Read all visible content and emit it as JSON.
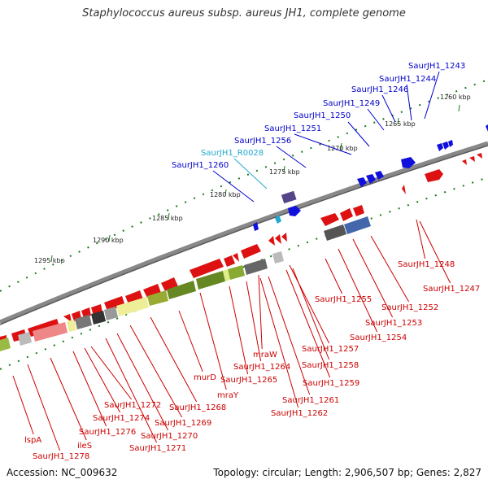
{
  "title": "Staphylococcus aureus subsp. aureus JH1, complete genome",
  "footer": {
    "accession": "Accession: NC_009632",
    "info": "Topology: circular; Length: 2,906,507 bp; Genes: 2,827"
  },
  "colors": {
    "forward_gene": "#0000cc",
    "rna_gene": "#22aacc",
    "reverse_gene": "#cc0000",
    "backbone": "#777777",
    "tick": "#1a7a1a"
  },
  "ticks": [
    {
      "label": "1260 kbp"
    },
    {
      "label": "1265 kbp"
    },
    {
      "label": "1270 kbp"
    },
    {
      "label": "1275 kbp"
    },
    {
      "label": "1280 kbp"
    },
    {
      "label": "1285 kbp"
    },
    {
      "label": "1290 kbp"
    },
    {
      "label": "1295 kbp"
    }
  ],
  "top_labels": [
    {
      "text": "SaurJH1_1243"
    },
    {
      "text": "SaurJH1_1244"
    },
    {
      "text": "SaurJH1_1246"
    },
    {
      "text": "SaurJH1_1249"
    },
    {
      "text": "SaurJH1_1250"
    },
    {
      "text": "SaurJH1_1251"
    },
    {
      "text": "SaurJH1_1256"
    },
    {
      "text": "SaurJH1_R0028"
    },
    {
      "text": "SaurJH1_1260"
    }
  ],
  "bottom_labels": [
    {
      "text": "SaurJH1_1248"
    },
    {
      "text": "SaurJH1_1247"
    },
    {
      "text": "SaurJH1_1255"
    },
    {
      "text": "SaurJH1_1252"
    },
    {
      "text": "SaurJH1_1253"
    },
    {
      "text": "SaurJH1_1254"
    },
    {
      "text": "SaurJH1_1257"
    },
    {
      "text": "SaurJH1_1258"
    },
    {
      "text": "mraW"
    },
    {
      "text": "SaurJH1_1264"
    },
    {
      "text": "SaurJH1_1265"
    },
    {
      "text": "SaurJH1_1259"
    },
    {
      "text": "murD"
    },
    {
      "text": "mraY"
    },
    {
      "text": "SaurJH1_1261"
    },
    {
      "text": "SaurJH1_1268"
    },
    {
      "text": "SaurJH1_1262"
    },
    {
      "text": "SaurJH1_1272"
    },
    {
      "text": "SaurJH1_1274"
    },
    {
      "text": "SaurJH1_1269"
    },
    {
      "text": "SaurJH1_1276"
    },
    {
      "text": "SaurJH1_1270"
    },
    {
      "text": "lspA"
    },
    {
      "text": "ileS"
    },
    {
      "text": "SaurJH1_1271"
    },
    {
      "text": "SaurJH1_1278"
    }
  ]
}
